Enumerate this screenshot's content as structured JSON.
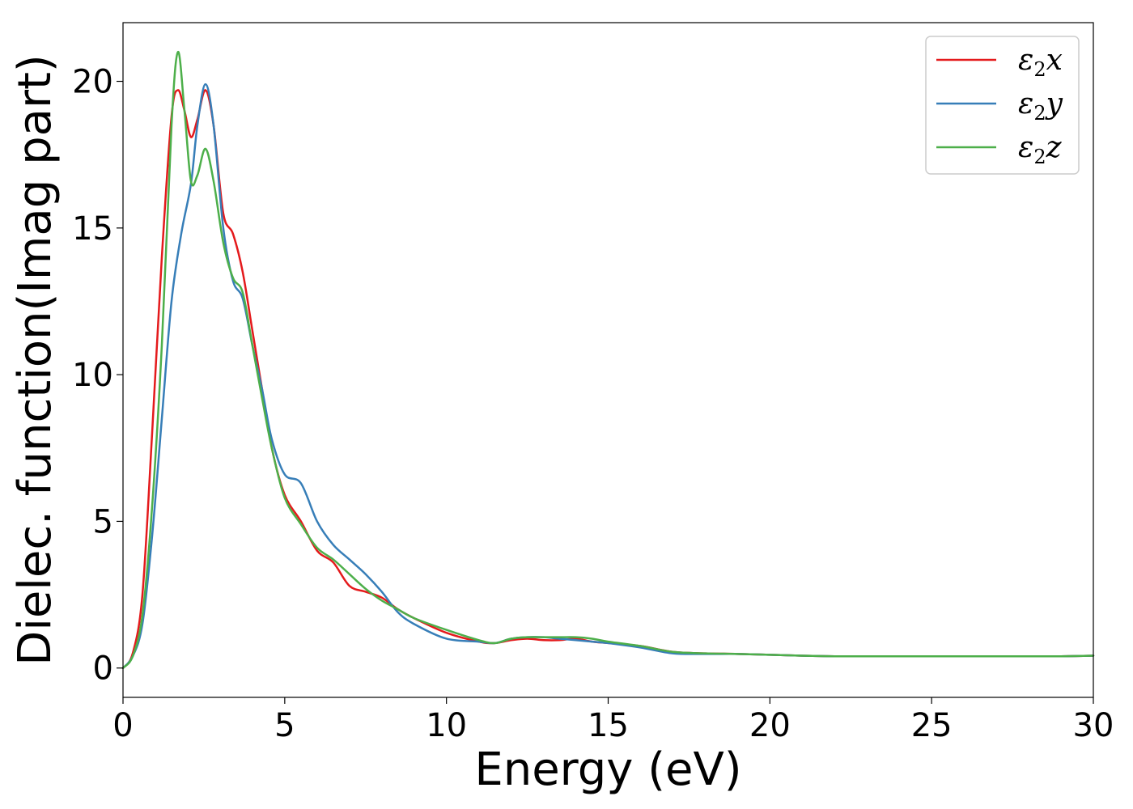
{
  "chart_data": {
    "type": "line",
    "title": "",
    "xlabel": "Energy (eV)",
    "ylabel": "Dielec. function(Imag part)",
    "xlim": [
      0,
      30
    ],
    "ylim": [
      -1,
      22
    ],
    "xticks": [
      "0",
      "5",
      "10",
      "15",
      "20",
      "25",
      "30"
    ],
    "yticks": [
      "0",
      "5",
      "10",
      "15",
      "20"
    ],
    "grid": false,
    "legend_position": "top-right",
    "series": [
      {
        "name": "ε₂x",
        "label_main": "ε",
        "label_sub": "2",
        "label_var": "x",
        "color": "#e41a1c",
        "x": [
          0,
          0.3,
          0.6,
          0.9,
          1.2,
          1.5,
          1.7,
          1.9,
          2.1,
          2.3,
          2.55,
          2.8,
          3.1,
          3.4,
          3.7,
          4.0,
          4.3,
          4.6,
          5.0,
          5.5,
          6.0,
          6.5,
          7.0,
          7.5,
          8.0,
          8.5,
          9.0,
          10.0,
          11.0,
          11.5,
          12.0,
          12.5,
          13.0,
          13.5,
          14.0,
          14.5,
          15.0,
          16.0,
          17.0,
          18.0,
          19.0,
          20.0,
          21.0,
          22.0,
          23.0,
          24.0,
          25.0,
          26.0,
          27.0,
          28.0,
          29.0,
          30.0
        ],
        "values": [
          0.0,
          0.5,
          2.5,
          8.0,
          14.0,
          18.8,
          19.7,
          19.0,
          18.1,
          18.7,
          19.7,
          18.5,
          15.5,
          14.8,
          13.5,
          11.5,
          9.5,
          7.5,
          5.9,
          5.0,
          4.0,
          3.6,
          2.8,
          2.6,
          2.4,
          2.0,
          1.7,
          1.2,
          0.9,
          0.85,
          0.95,
          1.0,
          0.95,
          0.95,
          1.0,
          0.9,
          0.85,
          0.75,
          0.55,
          0.5,
          0.48,
          0.45,
          0.42,
          0.4,
          0.4,
          0.4,
          0.4,
          0.4,
          0.4,
          0.4,
          0.4,
          0.42
        ]
      },
      {
        "name": "ε₂y",
        "label_main": "ε",
        "label_sub": "2",
        "label_var": "y",
        "color": "#377eb8",
        "x": [
          0,
          0.3,
          0.6,
          0.9,
          1.2,
          1.5,
          1.8,
          2.1,
          2.3,
          2.55,
          2.8,
          3.1,
          3.4,
          3.7,
          4.0,
          4.3,
          4.6,
          5.0,
          5.5,
          6.0,
          6.5,
          7.0,
          7.5,
          8.0,
          8.5,
          9.0,
          10.0,
          11.0,
          11.5,
          12.0,
          12.5,
          13.0,
          13.5,
          14.0,
          14.5,
          15.0,
          16.0,
          17.0,
          18.0,
          19.0,
          20.0,
          21.0,
          22.0,
          23.0,
          24.0,
          25.0,
          26.0,
          27.0,
          28.0,
          29.0,
          30.0
        ],
        "values": [
          0.0,
          0.4,
          1.5,
          4.5,
          8.5,
          12.5,
          14.8,
          16.5,
          18.5,
          19.9,
          18.5,
          15.0,
          13.2,
          12.6,
          11.0,
          9.5,
          7.8,
          6.6,
          6.3,
          5.0,
          4.2,
          3.7,
          3.2,
          2.6,
          1.9,
          1.5,
          1.0,
          0.9,
          0.85,
          1.0,
          1.05,
          1.05,
          1.0,
          0.95,
          0.9,
          0.85,
          0.7,
          0.5,
          0.48,
          0.48,
          0.45,
          0.42,
          0.4,
          0.4,
          0.4,
          0.4,
          0.4,
          0.4,
          0.4,
          0.4,
          0.42
        ]
      },
      {
        "name": "ε₂z",
        "label_main": "ε",
        "label_sub": "2",
        "label_var": "z",
        "color": "#4daf4a",
        "x": [
          0,
          0.3,
          0.6,
          0.9,
          1.2,
          1.5,
          1.7,
          1.9,
          2.1,
          2.3,
          2.55,
          2.8,
          3.1,
          3.4,
          3.7,
          4.0,
          4.3,
          4.6,
          5.0,
          5.5,
          6.0,
          6.5,
          7.0,
          7.5,
          8.0,
          8.5,
          9.0,
          10.0,
          11.0,
          11.5,
          12.0,
          12.5,
          13.0,
          13.5,
          14.0,
          14.5,
          15.0,
          16.0,
          17.0,
          18.0,
          19.0,
          20.0,
          21.0,
          22.0,
          23.0,
          24.0,
          25.0,
          26.0,
          27.0,
          28.0,
          29.0,
          30.0
        ],
        "values": [
          0.0,
          0.4,
          1.8,
          5.5,
          11.0,
          18.5,
          21.0,
          19.0,
          16.6,
          16.8,
          17.7,
          16.6,
          14.5,
          13.3,
          12.8,
          11.0,
          9.2,
          7.5,
          5.8,
          4.9,
          4.1,
          3.7,
          3.2,
          2.7,
          2.3,
          2.0,
          1.7,
          1.3,
          0.95,
          0.85,
          1.0,
          1.05,
          1.05,
          1.05,
          1.05,
          1.0,
          0.9,
          0.75,
          0.55,
          0.5,
          0.48,
          0.45,
          0.42,
          0.4,
          0.4,
          0.4,
          0.4,
          0.4,
          0.4,
          0.4,
          0.4,
          0.42
        ]
      }
    ]
  }
}
